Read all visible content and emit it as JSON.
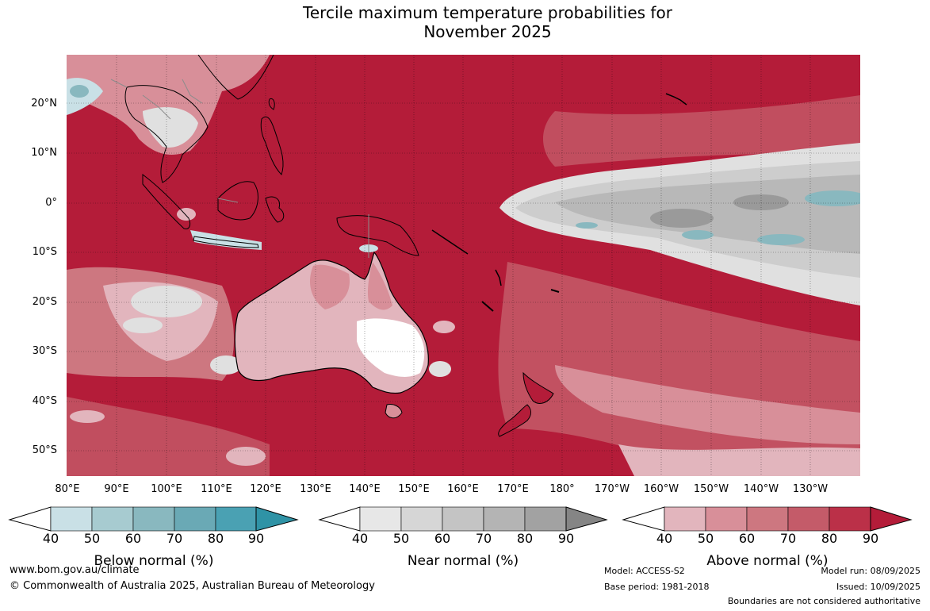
{
  "title_line1": "Tercile maximum temperature probabilities for",
  "title_line2": "November 2025",
  "lat_labels": [
    "20°N",
    "10°N",
    "0°",
    "10°S",
    "20°S",
    "30°S",
    "40°S",
    "50°S"
  ],
  "lon_labels": [
    "80°E",
    "90°E",
    "100°E",
    "110°E",
    "120°E",
    "130°E",
    "140°E",
    "150°E",
    "160°E",
    "170°E",
    "180°",
    "170°W",
    "160°W",
    "150°W",
    "140°W",
    "130°W"
  ],
  "colorbars": [
    {
      "title": "Below normal (%)",
      "ticks": [
        "40",
        "50",
        "60",
        "70",
        "80",
        "90"
      ],
      "colors": [
        "#ffffff",
        "#c9e0e6",
        "#a7cbd0",
        "#89b8bf",
        "#6aa9b5",
        "#4aa1b3",
        "#2f93a6"
      ]
    },
    {
      "title": "Near normal (%)",
      "ticks": [
        "40",
        "50",
        "60",
        "70",
        "80",
        "90"
      ],
      "colors": [
        "#ffffff",
        "#e7e7e7",
        "#d6d6d6",
        "#c4c4c4",
        "#b4b4b4",
        "#a2a2a2",
        "#858585"
      ]
    },
    {
      "title": "Above normal (%)",
      "ticks": [
        "40",
        "50",
        "60",
        "70",
        "80",
        "90"
      ],
      "colors": [
        "#ffffff",
        "#e2b5bd",
        "#d88f99",
        "#cd7780",
        "#c45b69",
        "#bb3048",
        "#b41c39"
      ]
    }
  ],
  "footer": {
    "url": "www.bom.gov.au/climate",
    "copyright": "© Commonwealth of Australia 2025, Australian Bureau of Meteorology",
    "model": "Model: ACCESS-S2",
    "base_period": "Base period: 1981-2018",
    "model_run": "Model run: 08/09/2025",
    "issued": "Issued: 10/09/2025",
    "boundaries": "Boundaries are not considered authoritative"
  },
  "map_colors": {
    "above_90": "#b41c39",
    "above_80": "#bb3048",
    "above_70": "#c45b69",
    "above_60": "#cd7780",
    "above_50": "#d88f99",
    "above_40": "#e2b5bd",
    "near_50": "#e0e0e0",
    "near_60": "#cdcdcd",
    "near_70": "#b8b8b8",
    "near_80": "#9a9a9a",
    "below_50": "#c9e0e6",
    "below_70": "#89b8bf",
    "coast": "#000000",
    "border": "#8c8c8c",
    "grid": "#000000"
  }
}
